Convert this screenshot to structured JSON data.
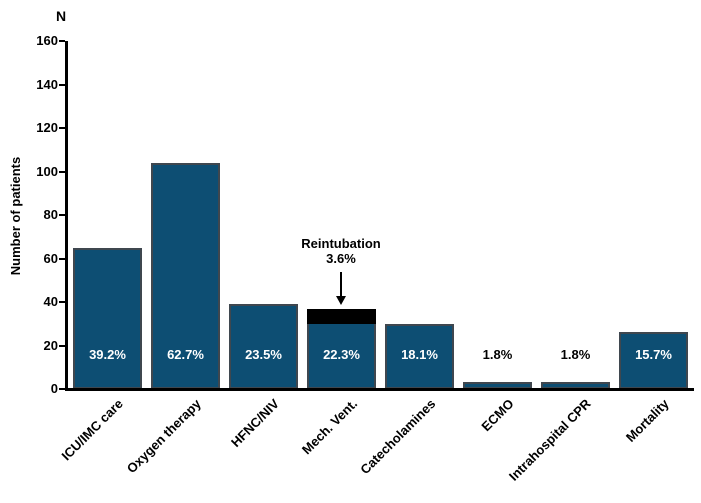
{
  "chart_data": {
    "type": "bar",
    "title": "",
    "y_axis_unit": "N",
    "ylabel": "Number of patients",
    "ylim": [
      0,
      160
    ],
    "yticks": [
      0,
      20,
      40,
      60,
      80,
      100,
      120,
      140,
      160
    ],
    "grid": false,
    "legend": false,
    "categories": [
      "ICU/IMC care",
      "Oxygen therapy",
      "HFNC/NIV",
      "Mech. Vent.",
      "Catecholamines",
      "ECMO",
      "Intrahospital CPR",
      "Mortality"
    ],
    "values": [
      65,
      104,
      39,
      37,
      30,
      3,
      3,
      26
    ],
    "bar_labels": [
      "39.2%",
      "62.7%",
      "23.5%",
      "22.3%",
      "18.1%",
      "1.8%",
      "1.8%",
      "15.7%"
    ],
    "bar_label_inside": [
      true,
      true,
      true,
      true,
      true,
      false,
      false,
      true
    ],
    "bar_color": "#0D4E73",
    "bar_border_color": "#3F474F",
    "bar_label_inside_color": "#ffffff",
    "bar_label_outside_color": "#000000",
    "overlay_segment": {
      "category": "Mech. Vent.",
      "category_index": 3,
      "value": 6,
      "color": "#000000",
      "label": "Reintubation",
      "pct_label": "3.6%"
    }
  }
}
